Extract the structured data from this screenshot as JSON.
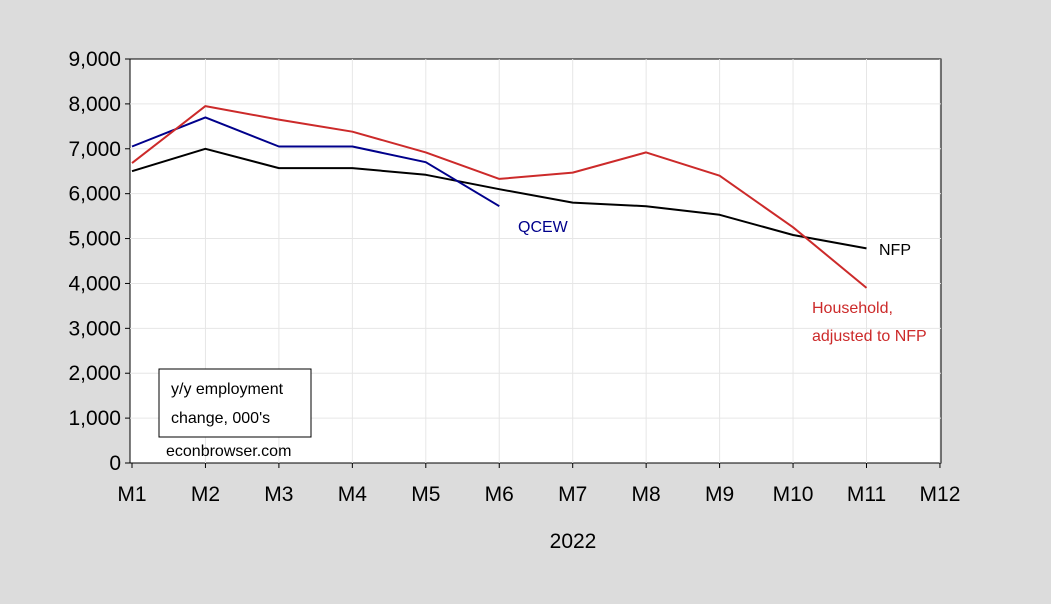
{
  "chart_data": {
    "type": "line",
    "title": "",
    "xlabel": "2022",
    "ylabel": "",
    "categories": [
      "M1",
      "M2",
      "M3",
      "M4",
      "M5",
      "M6",
      "M7",
      "M8",
      "M9",
      "M10",
      "M11",
      "M12"
    ],
    "y_ticks": [
      "0",
      "1,000",
      "2,000",
      "3,000",
      "4,000",
      "5,000",
      "6,000",
      "7,000",
      "8,000",
      "9,000"
    ],
    "ylim": [
      0,
      9000
    ],
    "grid": true,
    "series": [
      {
        "name": "NFP",
        "color": "#000000",
        "values": [
          6500,
          7000,
          6570,
          6570,
          6420,
          6100,
          5800,
          5720,
          5530,
          5080,
          4780,
          null
        ]
      },
      {
        "name": "QCEW",
        "color": "#00008b",
        "values": [
          7050,
          7700,
          7050,
          7050,
          6700,
          5720,
          null,
          null,
          null,
          null,
          null,
          null
        ]
      },
      {
        "name": "Household, adjusted to NFP",
        "name_lines": [
          "Household,",
          "adjusted to NFP"
        ],
        "color": "#cc2a2a",
        "values": [
          6680,
          7950,
          7650,
          7380,
          6920,
          6330,
          6470,
          6920,
          6400,
          5250,
          3900,
          null
        ]
      }
    ],
    "annotation_box": {
      "lines": [
        "y/y employment",
        "change, 000's"
      ]
    },
    "footer": "econbrowser.com"
  }
}
